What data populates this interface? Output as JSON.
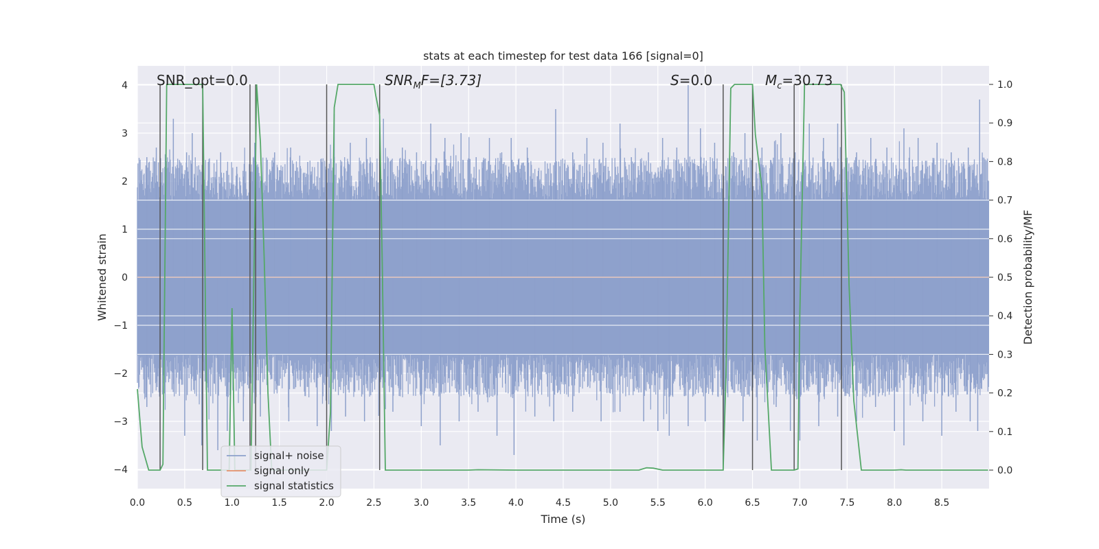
{
  "chart_data": {
    "type": "line",
    "title": "stats at each timestep for test data 166 [signal=0]",
    "xlabel": "Time (s)",
    "ylabel": "Whitened strain",
    "y2label": "Detection probability/MF",
    "xlim": [
      0,
      9.0
    ],
    "ylim": [
      -4.4,
      4.4
    ],
    "y2lim": [
      -0.048,
      1.048
    ],
    "xticks": [
      "0.0",
      "0.5",
      "1.0",
      "1.5",
      "2.0",
      "2.5",
      "3.0",
      "3.5",
      "4.0",
      "4.5",
      "5.0",
      "5.5",
      "6.0",
      "6.5",
      "7.0",
      "7.5",
      "8.0",
      "8.5"
    ],
    "yticks": [
      "−4",
      "−3",
      "−2",
      "−1",
      "0",
      "1",
      "2",
      "3",
      "4"
    ],
    "y2ticks": [
      "0.0",
      "0.1",
      "0.2",
      "0.3",
      "0.4",
      "0.5",
      "0.6",
      "0.7",
      "0.8",
      "0.9",
      "1.0"
    ],
    "grid": true,
    "legend_position": "lower-left",
    "legend": [
      {
        "label": "signal+ noise",
        "color": "#8da0cb"
      },
      {
        "label": "signal only",
        "color": "#e5906b"
      },
      {
        "label": "signal statistics",
        "color": "#55a868"
      }
    ],
    "annotations": {
      "snr_opt": "SNR_opt=0.0",
      "snr_mf_main": "SNR",
      "snr_mf_sub": "M",
      "snr_mf_rest": "F=[3.73]",
      "s_main": "S",
      "s_rest": "=0.0",
      "mc_main": "M",
      "mc_sub": "c",
      "mc_rest": "=30.73"
    },
    "series": [
      {
        "name": "signal+ noise",
        "description_of_envelope": "noise spikes, typical |y| about 2.5, max about 4",
        "spikes_positive": [
          [
            0.1,
            2.5
          ],
          [
            0.2,
            2.7
          ],
          [
            0.38,
            3.3
          ],
          [
            0.52,
            2.6
          ],
          [
            0.58,
            3.0
          ],
          [
            0.75,
            2.4
          ],
          [
            0.88,
            2.6
          ],
          [
            1.05,
            2.3
          ],
          [
            1.24,
            2.8
          ],
          [
            1.45,
            2.6
          ],
          [
            1.62,
            2.7
          ],
          [
            1.8,
            2.4
          ],
          [
            2.08,
            3.4
          ],
          [
            2.25,
            2.8
          ],
          [
            2.42,
            2.9
          ],
          [
            2.6,
            3.3
          ],
          [
            2.8,
            2.7
          ],
          [
            2.95,
            2.6
          ],
          [
            3.1,
            3.2
          ],
          [
            3.25,
            2.9
          ],
          [
            3.42,
            3.0
          ],
          [
            3.58,
            2.5
          ],
          [
            3.72,
            2.9
          ],
          [
            3.85,
            2.6
          ],
          [
            3.95,
            2.9
          ],
          [
            4.12,
            2.7
          ],
          [
            4.42,
            3.5
          ],
          [
            4.6,
            2.6
          ],
          [
            4.75,
            2.9
          ],
          [
            4.92,
            2.8
          ],
          [
            5.1,
            3.2
          ],
          [
            5.22,
            2.5
          ],
          [
            5.4,
            2.6
          ],
          [
            5.55,
            2.9
          ],
          [
            5.7,
            2.7
          ],
          [
            5.82,
            4.0
          ],
          [
            5.95,
            3.1
          ],
          [
            6.1,
            2.8
          ],
          [
            6.3,
            2.6
          ],
          [
            6.42,
            3.0
          ],
          [
            6.6,
            2.7
          ],
          [
            6.8,
            3.0
          ],
          [
            6.95,
            2.6
          ],
          [
            7.1,
            3.2
          ],
          [
            7.25,
            2.9
          ],
          [
            7.4,
            3.2
          ],
          [
            7.6,
            2.6
          ],
          [
            7.75,
            2.9
          ],
          [
            7.92,
            2.7
          ],
          [
            8.1,
            3.1
          ],
          [
            8.25,
            2.9
          ],
          [
            8.45,
            2.8
          ],
          [
            8.6,
            2.6
          ],
          [
            8.78,
            2.7
          ],
          [
            8.9,
            3.7
          ]
        ],
        "spikes_negative": [
          [
            0.1,
            -2.7
          ],
          [
            0.5,
            -3.3
          ],
          [
            0.68,
            -3.5
          ],
          [
            0.85,
            -3.6
          ],
          [
            0.95,
            -3.2
          ],
          [
            1.12,
            -3.0
          ],
          [
            1.3,
            -2.9
          ],
          [
            1.6,
            -3.0
          ],
          [
            1.9,
            -3.1
          ],
          [
            2.05,
            -3.2
          ],
          [
            2.2,
            -2.9
          ],
          [
            2.4,
            -3.0
          ],
          [
            2.7,
            -2.8
          ],
          [
            3.0,
            -3.1
          ],
          [
            3.2,
            -3.5
          ],
          [
            3.4,
            -3.0
          ],
          [
            3.6,
            -2.8
          ],
          [
            3.8,
            -3.3
          ],
          [
            3.98,
            -3.7
          ],
          [
            4.2,
            -2.9
          ],
          [
            4.4,
            -3.0
          ],
          [
            4.6,
            -2.8
          ],
          [
            4.9,
            -3.0
          ],
          [
            5.1,
            -2.8
          ],
          [
            5.35,
            -3.0
          ],
          [
            5.5,
            -3.2
          ],
          [
            5.62,
            -3.3
          ],
          [
            5.82,
            -3.1
          ],
          [
            6.0,
            -3.0
          ],
          [
            6.2,
            -3.4
          ],
          [
            6.4,
            -3.0
          ],
          [
            6.55,
            -3.4
          ],
          [
            6.75,
            -2.7
          ],
          [
            6.9,
            -3.2
          ],
          [
            7.0,
            -3.4
          ],
          [
            7.2,
            -3.1
          ],
          [
            7.4,
            -2.9
          ],
          [
            7.6,
            -3.0
          ],
          [
            7.8,
            -2.7
          ],
          [
            8.0,
            -3.2
          ],
          [
            8.1,
            -3.5
          ],
          [
            8.3,
            -3.0
          ],
          [
            8.5,
            -3.3
          ],
          [
            8.65,
            -2.8
          ],
          [
            8.8,
            -3.0
          ],
          [
            8.88,
            -3.2
          ]
        ]
      },
      {
        "name": "signal only",
        "x": [
          0,
          9.0
        ],
        "y": [
          0,
          0
        ]
      },
      {
        "name": "signal statistics",
        "axis": "right",
        "x": [
          0.0,
          0.05,
          0.12,
          0.18,
          0.24,
          0.27,
          0.31,
          0.36,
          0.41,
          0.46,
          0.5,
          0.55,
          0.6,
          0.65,
          0.69,
          0.74,
          0.8,
          0.86,
          0.92,
          0.97,
          1.0,
          1.03,
          1.08,
          1.14,
          1.2,
          1.24,
          1.26,
          1.3,
          1.34,
          1.38,
          1.42,
          1.6,
          1.8,
          1.95,
          2.0,
          2.04,
          2.08,
          2.12,
          2.3,
          2.5,
          2.52,
          2.56,
          2.59,
          2.62,
          2.7,
          3.0,
          3.3,
          3.5,
          3.6,
          4.0,
          4.5,
          5.0,
          5.3,
          5.38,
          5.45,
          5.55,
          5.8,
          6.0,
          6.19,
          6.22,
          6.27,
          6.31,
          6.37,
          6.45,
          6.5,
          6.53,
          6.6,
          6.63,
          6.7,
          6.82,
          6.94,
          6.98,
          7.0,
          7.05,
          7.1,
          7.2,
          7.3,
          7.4,
          7.43,
          7.47,
          7.52,
          7.57,
          7.65,
          7.8,
          8.0,
          8.07,
          8.12,
          8.2,
          8.5,
          8.8,
          8.99
        ],
        "y": [
          0.21,
          0.06,
          0.0,
          0.0,
          0.0,
          0.015,
          1.0,
          1.0,
          1.0,
          1.0,
          1.0,
          1.0,
          1.0,
          1.0,
          1.0,
          0.0,
          0.0,
          0.0,
          0.0,
          0.0,
          0.42,
          0.0,
          0.0,
          0.0,
          0.0,
          0.64,
          1.0,
          0.85,
          0.55,
          0.2,
          0.0,
          0.0,
          0.0,
          0.0,
          0.0,
          0.15,
          0.94,
          1.0,
          1.0,
          1.0,
          0.97,
          0.92,
          0.5,
          0.0,
          0.0,
          0.0,
          0.0,
          0.0,
          0.001,
          0.0,
          0.0,
          0.0,
          0.0,
          0.006,
          0.005,
          0.0,
          0.0,
          0.0,
          0.0,
          0.25,
          0.99,
          1.0,
          1.0,
          1.0,
          1.0,
          0.87,
          0.73,
          0.32,
          0.0,
          0.0,
          0.0,
          0.003,
          0.4,
          1.0,
          1.0,
          1.0,
          1.0,
          1.0,
          1.0,
          0.98,
          0.48,
          0.18,
          0.0,
          0.0,
          0.0,
          0.001,
          0.0,
          0.0,
          0.0,
          0.0,
          0.0
        ]
      }
    ],
    "vertical_markers_x": [
      0.24,
      0.69,
      1.19,
      1.25,
      2.0,
      2.56,
      6.19,
      6.5,
      6.94,
      7.44
    ]
  }
}
